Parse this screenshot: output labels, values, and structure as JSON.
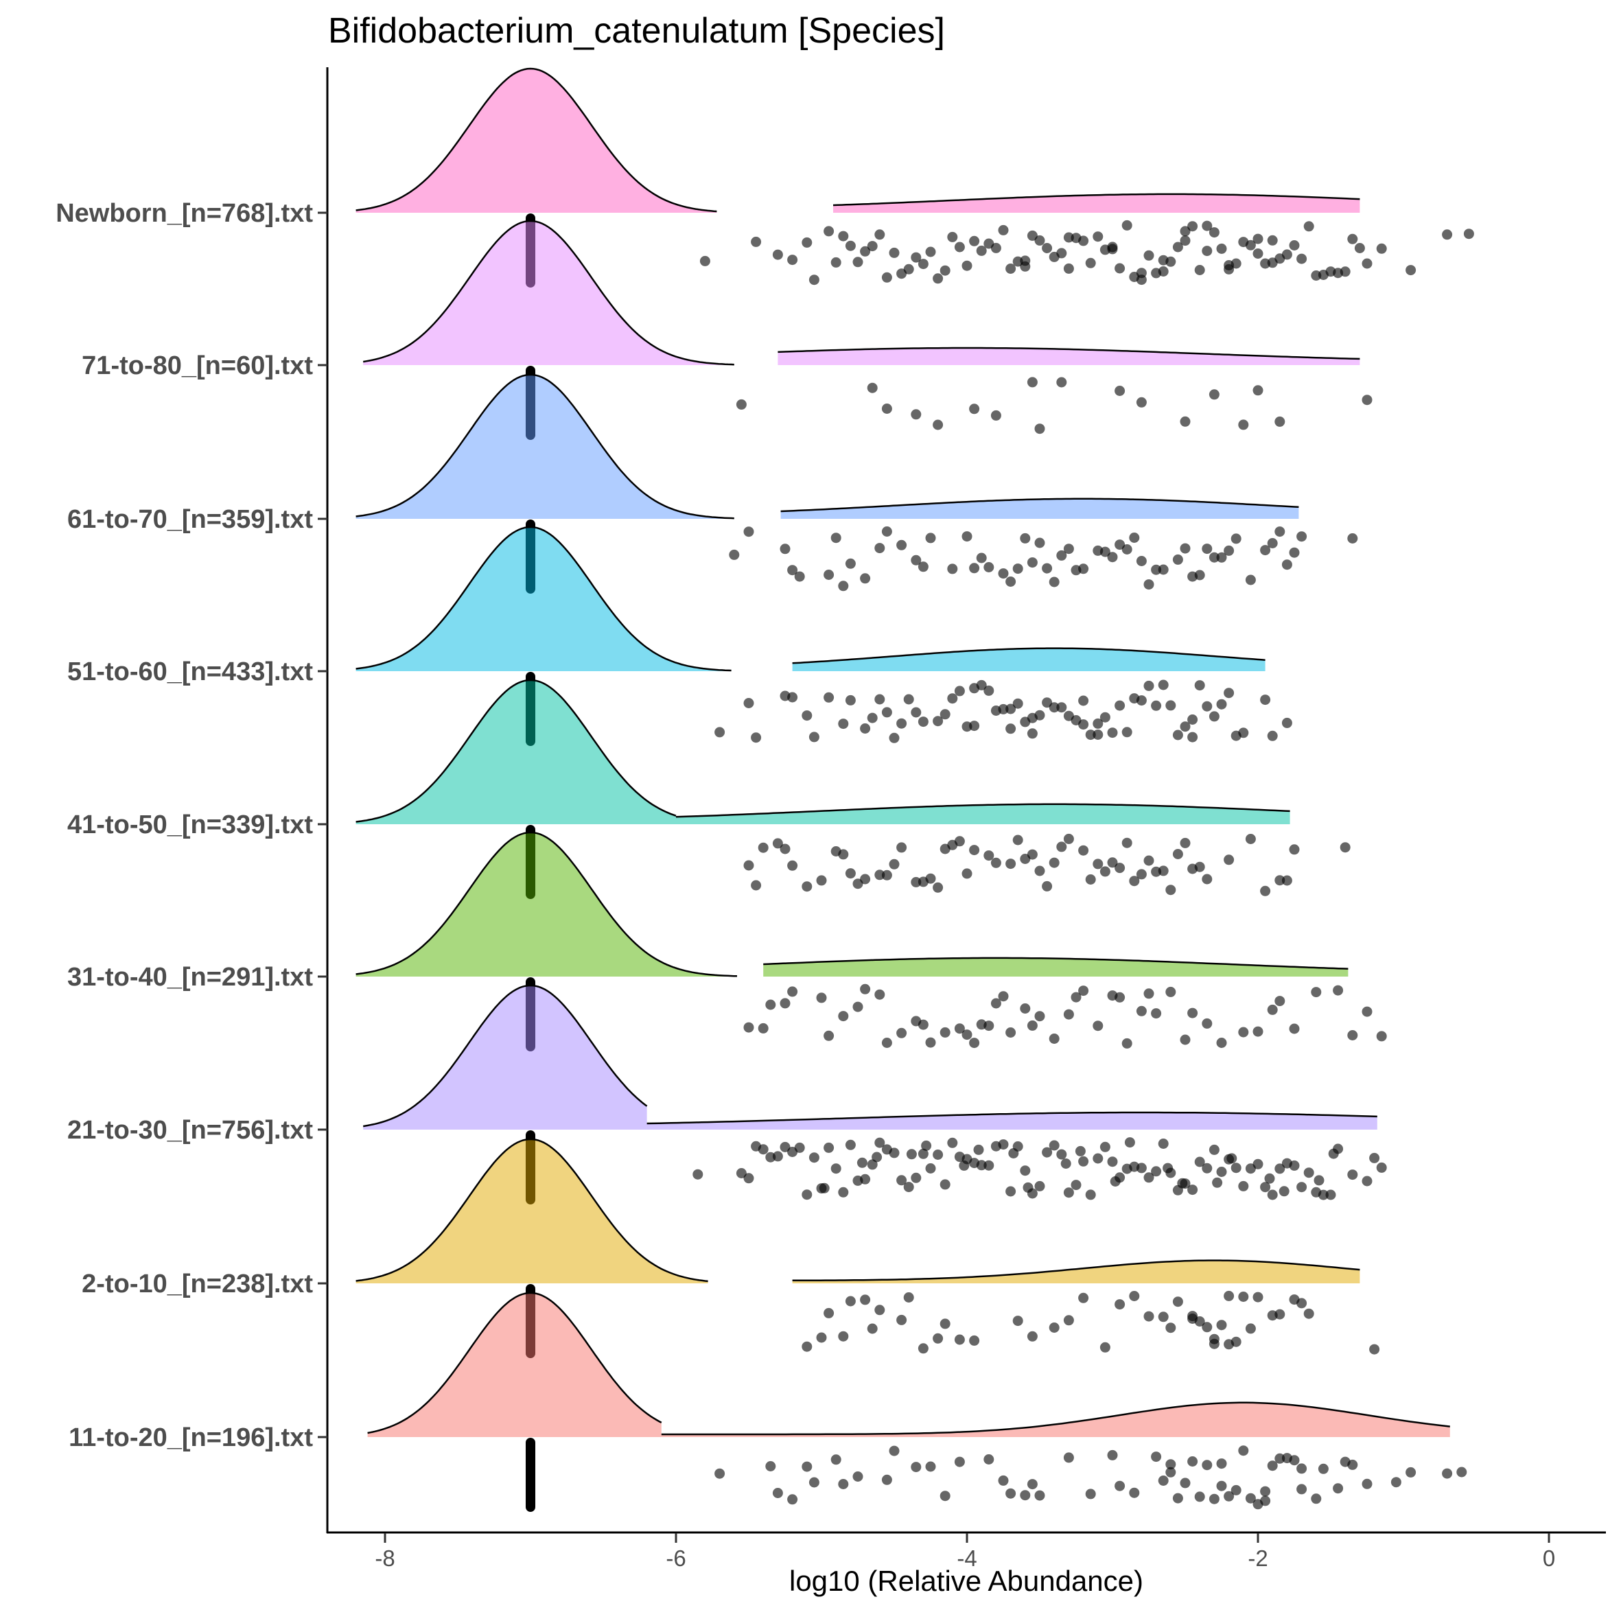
{
  "chart_data": {
    "type": "raincloud",
    "title": "Bifidobacterium_catenulatum [Species]",
    "xlabel": "log10 (Relative Abundance)",
    "ylabel": "",
    "xlim": [
      -8.4,
      0.4
    ],
    "x_ticks": [
      -8,
      -6,
      -4,
      -2,
      0
    ],
    "grid": false,
    "legend": "none",
    "zero_value": -7,
    "series": [
      {
        "name": "Newborn_[n=768].txt",
        "color": "#FF61C3",
        "head": {
          "mu": -7.0,
          "sd": 0.42,
          "lo": -8.2,
          "hi": -5.72
        },
        "tail": {
          "lo": -4.92,
          "hi": -1.3,
          "height": 0.11,
          "peak": -2.6,
          "spread": 1.5
        },
        "bar": [
          -7.0,
          -7.0
        ],
        "dots": [
          -5.8,
          -5.45,
          -5.2,
          -5.05,
          -4.9,
          -4.75,
          -4.6,
          -4.45,
          -4.3,
          -4.15,
          -4.0,
          -3.85,
          -3.7,
          -3.55,
          -3.4,
          -3.25,
          -3.1,
          -2.95,
          -2.8,
          -2.65,
          -2.5,
          -2.35,
          -2.2,
          -2.05,
          -1.9,
          -1.75,
          -1.6,
          -1.45,
          -1.3,
          -1.15,
          -0.95,
          -0.7,
          -0.55,
          -5.1,
          -4.8,
          -4.5,
          -4.2,
          -3.9,
          -3.6,
          -3.3,
          -3.0,
          -2.7,
          -2.4,
          -2.1,
          -1.8,
          -1.5,
          -1.25,
          -4.95,
          -4.35,
          -3.75,
          -3.15,
          -2.55,
          -1.95,
          -1.35,
          -4.65,
          -4.05,
          -3.45,
          -2.85,
          -2.25,
          -1.65,
          -2.0,
          -2.3,
          -2.6,
          -2.9,
          -3.2,
          -3.5,
          -3.8,
          -4.1,
          -4.4,
          -4.7,
          -5.3,
          -1.4,
          -1.7,
          -2.15,
          -2.45,
          -2.75,
          -3.05,
          -3.35,
          -3.65,
          -3.95,
          -4.25,
          -4.55,
          -4.85,
          -2.0,
          -1.55,
          -1.85,
          -2.35,
          -2.65,
          -3.6,
          -3.0,
          -2.2,
          -1.9,
          -2.5,
          -3.3,
          -2.8
        ]
      },
      {
        "name": "71-to-80_[n=60].txt",
        "color": "#E58AFF",
        "head": {
          "mu": -7.0,
          "sd": 0.42,
          "lo": -8.15,
          "hi": -5.6
        },
        "tail": {
          "lo": -5.3,
          "hi": -1.3,
          "height": 0.1,
          "peak": -4.0,
          "spread": 1.6
        },
        "bar": [
          -7.0,
          -7.0
        ],
        "dots": [
          -5.55,
          -4.65,
          -4.55,
          -4.35,
          -4.2,
          -3.95,
          -3.8,
          -3.55,
          -3.5,
          -3.35,
          -2.95,
          -2.8,
          -2.5,
          -2.3,
          -2.1,
          -2.0,
          -1.85,
          -1.25
        ]
      },
      {
        "name": "61-to-70_[n=359].txt",
        "color": "#619CFF",
        "head": {
          "mu": -7.0,
          "sd": 0.42,
          "lo": -8.2,
          "hi": -5.6
        },
        "tail": {
          "lo": -5.28,
          "hi": -1.72,
          "height": 0.12,
          "peak": -3.2,
          "spread": 1.3
        },
        "bar": [
          -7.0,
          -7.0
        ],
        "dots": [
          -5.6,
          -5.5,
          -5.25,
          -5.2,
          -5.15,
          -4.95,
          -4.85,
          -4.8,
          -4.7,
          -4.6,
          -4.55,
          -4.45,
          -4.35,
          -4.3,
          -4.1,
          -3.95,
          -3.9,
          -3.85,
          -3.7,
          -3.65,
          -3.6,
          -3.55,
          -3.5,
          -3.45,
          -3.35,
          -3.3,
          -3.2,
          -3.1,
          -3.05,
          -2.95,
          -2.9,
          -2.85,
          -2.8,
          -2.75,
          -2.65,
          -2.55,
          -2.45,
          -2.4,
          -2.35,
          -2.3,
          -2.25,
          -2.15,
          -2.05,
          -1.95,
          -1.85,
          -1.8,
          -1.75,
          -1.7,
          -1.35,
          -4.9,
          -4.25,
          -3.75,
          -3.25,
          -2.7,
          -2.2,
          -1.9,
          -3.0,
          -3.4,
          -2.5,
          -4.0
        ]
      },
      {
        "name": "51-to-60_[n=433].txt",
        "color": "#00B9E3",
        "head": {
          "mu": -7.0,
          "sd": 0.42,
          "lo": -8.2,
          "hi": -5.62
        },
        "tail": {
          "lo": -5.2,
          "hi": -1.95,
          "height": 0.14,
          "peak": -3.4,
          "spread": 1.1
        },
        "bar": [
          -7.0,
          -7.0
        ],
        "dots": [
          -5.7,
          -5.5,
          -5.45,
          -5.25,
          -5.2,
          -5.1,
          -5.05,
          -4.95,
          -4.85,
          -4.8,
          -4.7,
          -4.6,
          -4.55,
          -4.45,
          -4.35,
          -4.3,
          -4.2,
          -4.1,
          -4.05,
          -3.95,
          -3.9,
          -3.85,
          -3.8,
          -3.7,
          -3.65,
          -3.6,
          -3.55,
          -3.5,
          -3.45,
          -3.4,
          -3.35,
          -3.3,
          -3.2,
          -3.15,
          -3.1,
          -3.05,
          -2.95,
          -2.9,
          -2.85,
          -2.75,
          -2.7,
          -2.6,
          -2.55,
          -2.45,
          -2.4,
          -2.35,
          -2.25,
          -2.2,
          -2.1,
          -1.95,
          -1.9,
          -1.8,
          -4.5,
          -4.0,
          -3.75,
          -3.25,
          -3.0,
          -2.8,
          -2.5,
          -2.3,
          -4.65,
          -4.15,
          -3.95,
          -3.55,
          -3.2,
          -2.65,
          -2.45,
          -4.4,
          -3.7,
          -3.1,
          -2.15
        ]
      },
      {
        "name": "41-to-50_[n=339].txt",
        "color": "#00C1A3",
        "head": {
          "mu": -7.0,
          "sd": 0.42,
          "lo": -8.2,
          "hi": -6.0
        },
        "tail": {
          "lo": -6.0,
          "hi": -1.78,
          "height": 0.12,
          "peak": -3.4,
          "spread": 1.6
        },
        "bar": [
          -7.0,
          -7.0
        ],
        "dots": [
          -5.5,
          -5.45,
          -5.4,
          -5.3,
          -5.25,
          -5.1,
          -5.0,
          -4.9,
          -4.85,
          -4.75,
          -4.7,
          -4.6,
          -4.55,
          -4.45,
          -4.35,
          -4.3,
          -4.25,
          -4.15,
          -4.1,
          -4.05,
          -3.95,
          -3.85,
          -3.8,
          -3.7,
          -3.65,
          -3.55,
          -3.5,
          -3.45,
          -3.35,
          -3.3,
          -3.2,
          -3.15,
          -3.1,
          -3.05,
          -2.95,
          -2.9,
          -2.85,
          -2.75,
          -2.7,
          -2.65,
          -2.55,
          -2.5,
          -2.45,
          -2.4,
          -2.35,
          -2.2,
          -2.05,
          -1.95,
          -1.85,
          -1.8,
          -1.75,
          -1.4,
          -4.8,
          -4.2,
          -3.6,
          -3.0,
          -2.6,
          -4.0,
          -3.4,
          -2.8,
          -5.2,
          -4.5
        ]
      },
      {
        "name": "31-to-40_[n=291].txt",
        "color": "#53B400",
        "head": {
          "mu": -7.0,
          "sd": 0.42,
          "lo": -8.2,
          "hi": -5.58
        },
        "tail": {
          "lo": -5.4,
          "hi": -1.38,
          "height": 0.11,
          "peak": -3.8,
          "spread": 1.6
        },
        "bar": [
          -7.0,
          -7.0
        ],
        "dots": [
          -5.5,
          -5.4,
          -5.35,
          -5.25,
          -5.2,
          -5.0,
          -4.95,
          -4.85,
          -4.75,
          -4.7,
          -4.6,
          -4.55,
          -4.45,
          -4.35,
          -4.25,
          -4.15,
          -4.05,
          -4.0,
          -3.95,
          -3.9,
          -3.85,
          -3.75,
          -3.7,
          -3.6,
          -3.55,
          -3.5,
          -3.4,
          -3.3,
          -3.2,
          -3.1,
          -3.0,
          -2.95,
          -2.9,
          -2.8,
          -2.7,
          -2.6,
          -2.5,
          -2.45,
          -2.35,
          -2.25,
          -2.1,
          -2.0,
          -1.9,
          -1.85,
          -1.75,
          -1.6,
          -1.45,
          -1.35,
          -1.25,
          -1.15,
          -4.3,
          -3.8,
          -3.25,
          -2.75
        ]
      },
      {
        "name": "21-to-30_[n=756].txt",
        "color": "#A58AFF",
        "head": {
          "mu": -7.0,
          "sd": 0.42,
          "lo": -8.15,
          "hi": -6.2
        },
        "tail": {
          "lo": -6.2,
          "hi": -1.18,
          "height": 0.1,
          "peak": -2.8,
          "spread": 2.0
        },
        "bar": [
          -7.0,
          -7.0
        ],
        "dots": [
          -5.85,
          -5.55,
          -5.5,
          -5.45,
          -5.35,
          -5.3,
          -5.25,
          -5.2,
          -5.15,
          -5.05,
          -5.0,
          -4.95,
          -4.9,
          -4.85,
          -4.8,
          -4.75,
          -4.7,
          -4.65,
          -4.6,
          -4.55,
          -4.5,
          -4.45,
          -4.4,
          -4.35,
          -4.3,
          -4.25,
          -4.2,
          -4.15,
          -4.1,
          -4.05,
          -4.0,
          -3.95,
          -3.9,
          -3.85,
          -3.8,
          -3.75,
          -3.7,
          -3.65,
          -3.6,
          -3.55,
          -3.5,
          -3.45,
          -3.4,
          -3.35,
          -3.3,
          -3.25,
          -3.2,
          -3.15,
          -3.1,
          -3.05,
          -3.0,
          -2.95,
          -2.9,
          -2.85,
          -2.8,
          -2.75,
          -2.7,
          -2.65,
          -2.6,
          -2.55,
          -2.5,
          -2.45,
          -2.4,
          -2.35,
          -2.3,
          -2.25,
          -2.2,
          -2.15,
          -2.1,
          -2.05,
          -2.0,
          -1.95,
          -1.9,
          -1.85,
          -1.8,
          -1.75,
          -1.7,
          -1.65,
          -1.6,
          -1.55,
          -1.5,
          -1.45,
          -1.35,
          -1.25,
          -1.2,
          -1.15,
          -5.4,
          -4.98,
          -4.62,
          -4.28,
          -3.92,
          -3.58,
          -3.22,
          -2.88,
          -2.52,
          -2.18,
          -1.82,
          -1.48,
          -5.1,
          -4.72,
          -4.38,
          -4.02,
          -3.68,
          -3.32,
          -2.98,
          -2.62,
          -2.28,
          -1.92,
          -1.58
        ]
      },
      {
        "name": "2-to-10_[n=238].txt",
        "color": "#E2AA00",
        "head": {
          "mu": -7.0,
          "sd": 0.42,
          "lo": -8.2,
          "hi": -5.78
        },
        "tail": {
          "lo": -5.2,
          "hi": -1.3,
          "height": 0.14,
          "peak": -2.3,
          "spread": 0.9
        },
        "bar": [
          -7.0,
          -7.0
        ],
        "dots": [
          -5.1,
          -5.0,
          -4.95,
          -4.85,
          -4.8,
          -4.65,
          -4.6,
          -4.45,
          -4.4,
          -4.3,
          -4.15,
          -4.05,
          -3.95,
          -3.65,
          -3.55,
          -3.4,
          -3.2,
          -3.05,
          -2.95,
          -2.85,
          -2.75,
          -2.65,
          -2.55,
          -2.45,
          -2.4,
          -2.35,
          -2.3,
          -2.25,
          -2.2,
          -2.15,
          -2.1,
          -2.05,
          -2.0,
          -1.9,
          -1.85,
          -1.75,
          -1.7,
          -1.65,
          -1.2,
          -2.6,
          -2.2,
          -2.45,
          -2.3,
          -4.7,
          -4.2,
          -3.3
        ]
      },
      {
        "name": "11-to-20_[n=196].txt",
        "color": "#F8766D",
        "head": {
          "mu": -7.0,
          "sd": 0.42,
          "lo": -8.12,
          "hi": -6.1
        },
        "tail": {
          "lo": -6.1,
          "hi": -0.68,
          "height": 0.22,
          "peak": -2.1,
          "spread": 0.85
        },
        "bar": [
          -7.0,
          -7.0
        ],
        "dots": [
          -5.7,
          -5.35,
          -5.3,
          -5.2,
          -5.1,
          -5.05,
          -4.9,
          -4.85,
          -4.75,
          -4.55,
          -4.5,
          -4.35,
          -4.25,
          -4.15,
          -4.05,
          -3.85,
          -3.75,
          -3.7,
          -3.6,
          -3.55,
          -3.5,
          -3.3,
          -3.15,
          -3.0,
          -2.95,
          -2.85,
          -2.7,
          -2.65,
          -2.6,
          -2.55,
          -2.5,
          -2.45,
          -2.4,
          -2.35,
          -2.3,
          -2.25,
          -2.2,
          -2.15,
          -2.1,
          -2.05,
          -2.0,
          -1.95,
          -1.9,
          -1.85,
          -1.8,
          -1.75,
          -1.7,
          -1.6,
          -1.55,
          -1.45,
          -1.4,
          -1.35,
          -1.25,
          -1.05,
          -0.95,
          -0.7,
          -0.6,
          -2.6,
          -2.25,
          -1.95,
          -1.7
        ]
      }
    ]
  }
}
